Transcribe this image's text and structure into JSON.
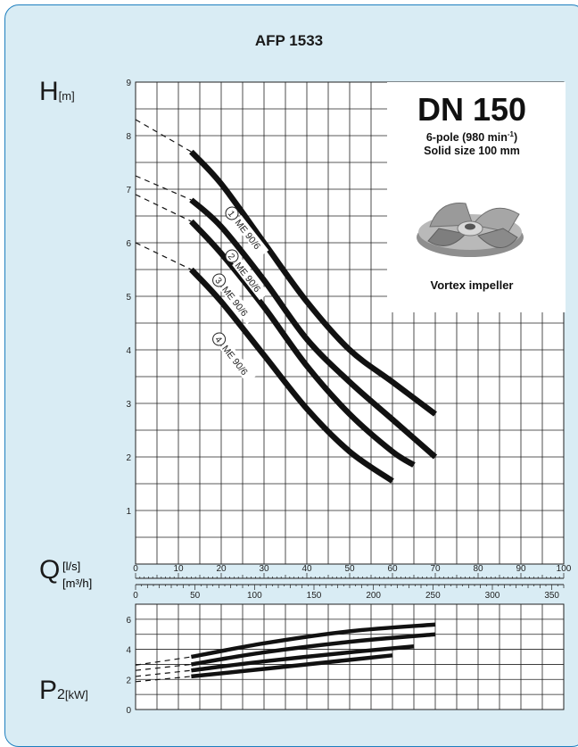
{
  "title": "AFP 1533",
  "info": {
    "dn": "DN 150",
    "pole": "6-pole (980 min",
    "pole_sup": "-1",
    "pole_end": ")",
    "solid": "Solid size 100 mm",
    "impeller": "Vortex impeller"
  },
  "axis": {
    "h_letter": "H",
    "h_unit": "[m]",
    "q_letter": "Q",
    "q_unit_ls": "[l/s]",
    "q_unit_m3h": "[m³/h]",
    "p_letter": "P",
    "p_sub": "2",
    "p_unit": "[kW]"
  },
  "colors": {
    "card_bg": "#d9ecf4",
    "border": "#1e7fbf",
    "curve": "#111111"
  },
  "chart_data": [
    {
      "type": "line",
      "name": "head",
      "xlabel": "Q [l/s]",
      "ylabel": "H [m]",
      "xlim": [
        0,
        100
      ],
      "ylim": [
        0,
        9
      ],
      "yticks": [
        1,
        2,
        3,
        4,
        5,
        6,
        7,
        8,
        9
      ],
      "xticks_ls": [
        0,
        10,
        20,
        30,
        40,
        50,
        60,
        70,
        80,
        90,
        100
      ],
      "xticks_m3h": [
        0,
        50,
        100,
        150,
        200,
        250,
        300,
        350
      ],
      "series": [
        {
          "name": "ME 90/6",
          "marker": "1",
          "dashed": [
            [
              0,
              8.3
            ],
            [
              13,
              7.7
            ]
          ],
          "x": [
            13,
            20,
            30,
            40,
            50,
            60,
            70
          ],
          "y": [
            7.7,
            7.1,
            6.0,
            4.9,
            4.0,
            3.4,
            2.8
          ]
        },
        {
          "name": "ME 90/6",
          "marker": "2",
          "dashed": [
            [
              0,
              7.25
            ],
            [
              13,
              6.8
            ]
          ],
          "x": [
            13,
            20,
            30,
            40,
            50,
            60,
            70
          ],
          "y": [
            6.8,
            6.3,
            5.3,
            4.2,
            3.4,
            2.7,
            2.0
          ]
        },
        {
          "name": "ME 90/6",
          "marker": "3",
          "dashed": [
            [
              0,
              6.9
            ],
            [
              13,
              6.4
            ]
          ],
          "x": [
            13,
            20,
            30,
            40,
            50,
            60,
            65
          ],
          "y": [
            6.4,
            5.8,
            4.8,
            3.7,
            2.8,
            2.1,
            1.85
          ]
        },
        {
          "name": "ME 90/6",
          "marker": "4",
          "dashed": [
            [
              0,
              6.0
            ],
            [
              13,
              5.5
            ]
          ],
          "x": [
            13,
            20,
            30,
            40,
            50,
            60
          ],
          "y": [
            5.5,
            4.9,
            3.9,
            2.9,
            2.1,
            1.55
          ]
        }
      ]
    },
    {
      "type": "line",
      "name": "power",
      "xlabel": "Q [l/s]",
      "ylabel": "P2 [kW]",
      "xlim": [
        0,
        100
      ],
      "ylim": [
        0,
        7
      ],
      "yticks": [
        0,
        2,
        4,
        6
      ],
      "series": [
        {
          "dashed": [
            [
              0,
              2.95
            ],
            [
              13,
              3.5
            ]
          ],
          "x": [
            13,
            30,
            50,
            70
          ],
          "y": [
            3.5,
            4.4,
            5.2,
            5.65
          ]
        },
        {
          "dashed": [
            [
              0,
              2.6
            ],
            [
              13,
              3.0
            ]
          ],
          "x": [
            13,
            30,
            50,
            70
          ],
          "y": [
            3.0,
            3.8,
            4.5,
            5.0
          ]
        },
        {
          "dashed": [
            [
              0,
              2.2
            ],
            [
              13,
              2.6
            ]
          ],
          "x": [
            13,
            30,
            50,
            65
          ],
          "y": [
            2.6,
            3.2,
            3.8,
            4.2
          ]
        },
        {
          "dashed": [
            [
              0,
              1.85
            ],
            [
              13,
              2.2
            ]
          ],
          "x": [
            13,
            30,
            50,
            60
          ],
          "y": [
            2.2,
            2.7,
            3.3,
            3.6
          ]
        }
      ]
    }
  ]
}
